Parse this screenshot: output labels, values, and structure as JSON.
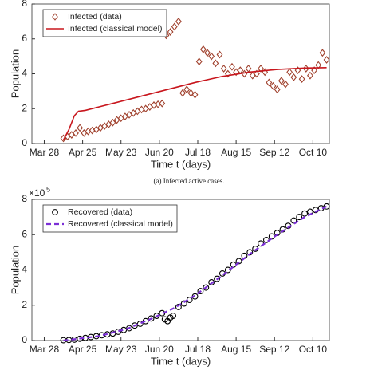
{
  "chart_data": [
    {
      "type": "line",
      "xlabel": "Time t (days)",
      "ylabel": "Population",
      "xlim": [
        -9,
        208
      ],
      "ylim": [
        0,
        8
      ],
      "yticks": [
        0,
        2,
        4,
        6,
        8
      ],
      "xticks": [
        {
          "value": 0,
          "label": "Mar 28"
        },
        {
          "value": 28,
          "label": "Apr 25"
        },
        {
          "value": 56,
          "label": "May 23"
        },
        {
          "value": 84,
          "label": "Jun 20"
        },
        {
          "value": 112,
          "label": "Jul 18"
        },
        {
          "value": 140,
          "label": "Aug 15"
        },
        {
          "value": 168,
          "label": "Sep 12"
        },
        {
          "value": 196,
          "label": "Oct 10"
        }
      ],
      "legend": "upper left",
      "series": [
        {
          "name": "Infected (data)",
          "color": "#a0412d",
          "marker": "diamond",
          "x": [
            14,
            17,
            20,
            23,
            26,
            29,
            32,
            35,
            38,
            41,
            44,
            47,
            50,
            53,
            56,
            59,
            62,
            65,
            68,
            71,
            74,
            77,
            80,
            83,
            86,
            89,
            92,
            95,
            98,
            101,
            104,
            107,
            110,
            113,
            116,
            119,
            122,
            125,
            128,
            131,
            134,
            137,
            140,
            143,
            146,
            149,
            152,
            155,
            158,
            161,
            164,
            167,
            170,
            173,
            176,
            179,
            182,
            185,
            188,
            191,
            194,
            197,
            200,
            203,
            206
          ],
          "values": [
            0.3,
            0.4,
            0.5,
            0.6,
            0.9,
            0.6,
            0.7,
            0.75,
            0.8,
            0.9,
            1.0,
            1.1,
            1.2,
            1.35,
            1.45,
            1.55,
            1.65,
            1.75,
            1.85,
            1.95,
            2.0,
            2.1,
            2.2,
            2.25,
            2.3,
            6.2,
            6.4,
            6.7,
            7.0,
            2.9,
            3.1,
            2.9,
            2.8,
            4.7,
            5.4,
            5.2,
            5.0,
            4.6,
            5.1,
            4.3,
            4.0,
            4.4,
            4.1,
            4.2,
            4.0,
            4.3,
            3.9,
            4.0,
            4.3,
            4.1,
            3.5,
            3.3,
            3.1,
            3.6,
            3.4,
            4.1,
            3.8,
            4.2,
            3.7,
            4.3,
            3.9,
            4.2,
            4.5,
            5.2,
            4.8
          ]
        },
        {
          "name": "Infected (classical model)",
          "color": "#c8161d",
          "marker": null,
          "x": [
            14,
            18,
            22,
            25,
            30,
            50,
            70,
            90,
            110,
            130,
            150,
            170,
            190,
            206
          ],
          "values": [
            0.2,
            0.8,
            1.6,
            1.85,
            1.9,
            2.3,
            2.7,
            3.1,
            3.5,
            3.85,
            4.1,
            4.25,
            4.33,
            4.35
          ]
        }
      ]
    },
    {
      "type": "line",
      "xlabel": "Time t (days)",
      "ylabel": "Population",
      "y_multiplier": "×10",
      "y_multiplier_exp": "5",
      "xlim": [
        -9,
        208
      ],
      "ylim": [
        0,
        8
      ],
      "yticks": [
        0,
        2,
        4,
        6,
        8
      ],
      "xticks": [
        {
          "value": 0,
          "label": "Mar 28"
        },
        {
          "value": 28,
          "label": "Apr 25"
        },
        {
          "value": 56,
          "label": "May 23"
        },
        {
          "value": 84,
          "label": "Jun 20"
        },
        {
          "value": 112,
          "label": "Jul 18"
        },
        {
          "value": 140,
          "label": "Aug 15"
        },
        {
          "value": 168,
          "label": "Sep 12"
        },
        {
          "value": 196,
          "label": "Oct 10"
        }
      ],
      "legend": "upper left",
      "series": [
        {
          "name": "Recovered (data)",
          "color": "#000000",
          "marker": "circle",
          "x": [
            14,
            18,
            22,
            26,
            30,
            34,
            38,
            42,
            46,
            50,
            54,
            58,
            62,
            66,
            70,
            74,
            78,
            82,
            86,
            88,
            90,
            92,
            94,
            98,
            102,
            106,
            110,
            114,
            118,
            122,
            126,
            130,
            134,
            138,
            142,
            146,
            150,
            154,
            158,
            162,
            166,
            170,
            174,
            178,
            182,
            186,
            190,
            194,
            198,
            202,
            206
          ],
          "values": [
            0.02,
            0.03,
            0.05,
            0.1,
            0.15,
            0.2,
            0.25,
            0.3,
            0.35,
            0.4,
            0.5,
            0.6,
            0.7,
            0.85,
            0.95,
            1.1,
            1.25,
            1.4,
            1.55,
            1.2,
            1.1,
            1.3,
            1.4,
            1.9,
            2.1,
            2.3,
            2.5,
            2.8,
            3.0,
            3.3,
            3.5,
            3.8,
            4.0,
            4.3,
            4.5,
            4.8,
            5.0,
            5.2,
            5.5,
            5.7,
            5.9,
            6.1,
            6.3,
            6.5,
            6.8,
            7.0,
            7.2,
            7.3,
            7.4,
            7.5,
            7.6
          ]
        },
        {
          "name": "Recovered (classical model)",
          "color": "#7b2fd6",
          "marker": null,
          "dash": true,
          "x": [
            14,
            40,
            60,
            80,
            95,
            110,
            130,
            150,
            170,
            190,
            206
          ],
          "values": [
            0,
            0.25,
            0.65,
            1.3,
            1.85,
            2.55,
            3.7,
            4.9,
            6.0,
            7.0,
            7.6
          ]
        }
      ]
    }
  ],
  "caption_a": "(a) Infected active cases."
}
